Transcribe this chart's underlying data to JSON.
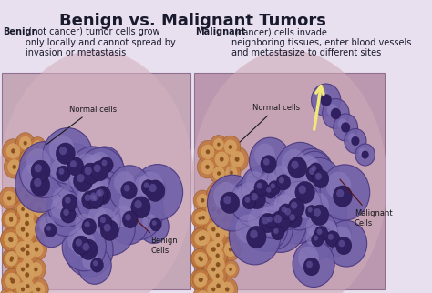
{
  "title": "Benign vs. Malignant Tumors",
  "title_fontsize": 13,
  "title_color": "#1a1a2e",
  "background_color": "#e8e0ee",
  "left_header_bold": "Benign",
  "left_header_normal": " (not cancer) tumor cells grow\nonly locally and cannot spread by\ninvasion or metastasis",
  "right_header_bold": "Malignant",
  "right_header_normal": " (cancer) cells invade\nneighboring tissues, enter blood vessels\nand metastasize to different sites",
  "left_label_normal": "Normal cells",
  "left_label_benign": "Benign\nCells",
  "right_label_normal": "Normal cells",
  "right_label_malignant": "Malignant\nCells",
  "panel_bg_left": "#c8a0b4",
  "panel_bg_right": "#c0a0b8",
  "tissue_pink": "#d4a8b8",
  "orange_tissue": "#c8906a",
  "normal_cell_outer": "#c8805a",
  "normal_cell_inner": "#d4a070",
  "benign_outer": "#7060a0",
  "benign_inner": "#5040808",
  "benign_highlight": "#9080c0",
  "malignant_outer": "#6050908",
  "arrow_color": "#f0e890",
  "label_color": "#1a1a2e",
  "line_color": "#8a4040"
}
